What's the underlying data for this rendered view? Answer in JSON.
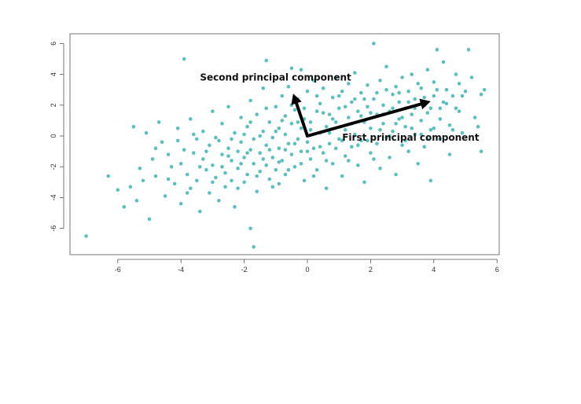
{
  "chart_data": {
    "type": "scatter",
    "title": "",
    "xlabel": "",
    "ylabel": "",
    "xlim": [
      -7.5,
      6.0
    ],
    "ylim": [
      -7.5,
      6.5
    ],
    "x_ticks": [
      -6,
      -4,
      -2,
      0,
      2,
      4,
      6
    ],
    "y_ticks": [
      -6,
      -4,
      -2,
      0,
      2,
      4,
      6
    ],
    "grid": false,
    "legend": "none",
    "point_color": "#5dbfbd",
    "arrow_color": "#000000",
    "series": [
      {
        "points": [
          [
            -7.0,
            -6.5
          ],
          [
            -6.3,
            -2.6
          ],
          [
            -6.0,
            -3.5
          ],
          [
            -5.8,
            -4.6
          ],
          [
            -5.6,
            -3.3
          ],
          [
            -5.5,
            0.6
          ],
          [
            -5.4,
            -4.2
          ],
          [
            -5.3,
            -2.1
          ],
          [
            -5.2,
            -2.9
          ],
          [
            -5.1,
            0.2
          ],
          [
            -5.0,
            -5.4
          ],
          [
            -4.9,
            -1.5
          ],
          [
            -4.8,
            -2.6
          ],
          [
            -4.7,
            0.9
          ],
          [
            -4.6,
            -0.4
          ],
          [
            -4.5,
            -3.9
          ],
          [
            -4.4,
            -1.2
          ],
          [
            -4.3,
            -2.0
          ],
          [
            -4.2,
            -3.1
          ],
          [
            -4.1,
            0.5
          ],
          [
            -4.0,
            -4.4
          ],
          [
            -4.0,
            -1.8
          ],
          [
            -3.9,
            -0.9
          ],
          [
            -3.9,
            5.0
          ],
          [
            -3.8,
            -2.5
          ],
          [
            -3.7,
            -3.4
          ],
          [
            -3.7,
            1.1
          ],
          [
            -3.6,
            -1.1
          ],
          [
            -3.5,
            -0.2
          ],
          [
            -3.5,
            -2.9
          ],
          [
            -3.4,
            -4.9
          ],
          [
            -3.3,
            -1.5
          ],
          [
            -3.3,
            0.3
          ],
          [
            -3.2,
            -2.2
          ],
          [
            -3.1,
            -3.7
          ],
          [
            -3.1,
            -0.6
          ],
          [
            -3.0,
            1.6
          ],
          [
            -3.0,
            -1.9
          ],
          [
            -2.9,
            -2.7
          ],
          [
            -2.8,
            -0.3
          ],
          [
            -2.8,
            -4.2
          ],
          [
            -2.7,
            -1.2
          ],
          [
            -2.7,
            0.8
          ],
          [
            -2.6,
            -2.4
          ],
          [
            -2.6,
            -3.3
          ],
          [
            -2.5,
            -0.8
          ],
          [
            -2.5,
            1.9
          ],
          [
            -2.4,
            -1.6
          ],
          [
            -2.4,
            -2.9
          ],
          [
            -2.3,
            0.2
          ],
          [
            -2.3,
            -4.6
          ],
          [
            -2.2,
            -1.0
          ],
          [
            -2.2,
            -2.1
          ],
          [
            -2.1,
            1.2
          ],
          [
            -2.1,
            -0.4
          ],
          [
            -2.0,
            -3.0
          ],
          [
            -2.0,
            -1.4
          ],
          [
            -1.9,
            0.6
          ],
          [
            -1.9,
            -2.5
          ],
          [
            -1.8,
            -0.9
          ],
          [
            -1.8,
            2.3
          ],
          [
            -1.8,
            -6.0
          ],
          [
            -1.7,
            -1.8
          ],
          [
            -1.7,
            -0.2
          ],
          [
            -1.7,
            -7.2
          ],
          [
            -1.6,
            -3.6
          ],
          [
            -1.6,
            1.4
          ],
          [
            -1.5,
            -1.1
          ],
          [
            -1.5,
            -2.3
          ],
          [
            -1.4,
            0.3
          ],
          [
            -1.4,
            3.1
          ],
          [
            -1.3,
            -0.6
          ],
          [
            -1.3,
            4.9
          ],
          [
            -1.3,
            -1.9
          ],
          [
            -1.2,
            -2.8
          ],
          [
            -1.2,
            0.9
          ],
          [
            -1.1,
            -0.1
          ],
          [
            -1.1,
            -1.4
          ],
          [
            -1.0,
            1.9
          ],
          [
            -1.0,
            -2.2
          ],
          [
            -0.9,
            0.5
          ],
          [
            -0.9,
            -3.1
          ],
          [
            -0.9,
            -0.8
          ],
          [
            -0.8,
            2.6
          ],
          [
            -0.8,
            -1.6
          ],
          [
            -0.7,
            0.1
          ],
          [
            -0.7,
            1.3
          ],
          [
            -0.7,
            -2.5
          ],
          [
            -0.6,
            -0.5
          ],
          [
            -0.6,
            3.2
          ],
          [
            -0.5,
            4.4
          ],
          [
            -0.5,
            -1.2
          ],
          [
            -0.5,
            0.8
          ],
          [
            -0.4,
            -2.0
          ],
          [
            -0.4,
            1.7
          ],
          [
            -0.3,
            -0.2
          ],
          [
            -0.3,
            2.4
          ],
          [
            -0.2,
            -1.0
          ],
          [
            -0.2,
            4.3
          ],
          [
            -0.2,
            0.5
          ],
          [
            -0.1,
            -2.9
          ],
          [
            -0.1,
            1.1
          ],
          [
            0.0,
            -0.4
          ],
          [
            0.0,
            2.9
          ],
          [
            0.1,
            -1.5
          ],
          [
            0.1,
            0.9
          ],
          [
            0.2,
            3.6
          ],
          [
            0.2,
            -0.8
          ],
          [
            0.3,
            1.6
          ],
          [
            0.3,
            -2.2
          ],
          [
            0.4,
            0.2
          ],
          [
            0.4,
            2.1
          ],
          [
            0.5,
            -1.1
          ],
          [
            0.5,
            3.1
          ],
          [
            0.6,
            0.6
          ],
          [
            0.6,
            -3.4
          ],
          [
            0.7,
            1.4
          ],
          [
            0.7,
            -0.5
          ],
          [
            0.8,
            2.5
          ],
          [
            0.8,
            -1.8
          ],
          [
            0.9,
            0.9
          ],
          [
            0.9,
            3.8
          ],
          [
            1.0,
            -0.2
          ],
          [
            1.0,
            1.8
          ],
          [
            1.1,
            -2.6
          ],
          [
            1.1,
            2.9
          ],
          [
            1.2,
            0.4
          ],
          [
            1.2,
            -1.3
          ],
          [
            1.3,
            1.2
          ],
          [
            1.3,
            3.4
          ],
          [
            1.4,
            -0.7
          ],
          [
            1.4,
            2.2
          ],
          [
            1.5,
            0.1
          ],
          [
            1.5,
            4.1
          ],
          [
            1.6,
            -1.9
          ],
          [
            1.6,
            1.6
          ],
          [
            1.7,
            2.8
          ],
          [
            1.7,
            -0.3
          ],
          [
            1.8,
            0.9
          ],
          [
            1.8,
            -3.0
          ],
          [
            1.9,
            1.9
          ],
          [
            1.9,
            3.3
          ],
          [
            2.0,
            -1.1
          ],
          [
            2.0,
            0.5
          ],
          [
            2.1,
            6.0
          ],
          [
            2.1,
            2.4
          ],
          [
            2.2,
            -0.5
          ],
          [
            2.2,
            1.4
          ],
          [
            2.3,
            3.6
          ],
          [
            2.3,
            -2.1
          ],
          [
            2.4,
            0.8
          ],
          [
            2.4,
            2.0
          ],
          [
            2.5,
            -0.1
          ],
          [
            2.5,
            4.5
          ],
          [
            2.6,
            1.6
          ],
          [
            2.6,
            -1.4
          ],
          [
            2.7,
            2.7
          ],
          [
            2.7,
            0.3
          ],
          [
            2.8,
            3.2
          ],
          [
            2.8,
            -2.5
          ],
          [
            2.9,
            1.1
          ],
          [
            2.9,
            2.2
          ],
          [
            3.0,
            -0.6
          ],
          [
            3.0,
            3.8
          ],
          [
            3.1,
            1.8
          ],
          [
            3.1,
            0.6
          ],
          [
            3.2,
            2.9
          ],
          [
            3.2,
            -1.0
          ],
          [
            3.3,
            1.4
          ],
          [
            3.3,
            4.0
          ],
          [
            3.4,
            0.1
          ],
          [
            3.4,
            2.4
          ],
          [
            3.5,
            -1.8
          ],
          [
            3.6,
            1.0
          ],
          [
            3.6,
            3.1
          ],
          [
            3.7,
            2.0
          ],
          [
            3.7,
            -0.7
          ],
          [
            3.8,
            4.3
          ],
          [
            3.8,
            1.5
          ],
          [
            3.9,
            0.4
          ],
          [
            3.9,
            -2.9
          ],
          [
            4.0,
            2.6
          ],
          [
            4.0,
            3.5
          ],
          [
            4.1,
            5.6
          ],
          [
            4.2,
            1.1
          ],
          [
            4.2,
            -0.2
          ],
          [
            4.3,
            2.2
          ],
          [
            4.3,
            4.8
          ],
          [
            4.4,
            3.0
          ],
          [
            4.5,
            0.7
          ],
          [
            4.5,
            -1.2
          ],
          [
            4.6,
            2.6
          ],
          [
            4.7,
            4.0
          ],
          [
            4.8,
            1.6
          ],
          [
            4.8,
            3.4
          ],
          [
            4.9,
            0.2
          ],
          [
            5.0,
            2.9
          ],
          [
            5.1,
            5.6
          ],
          [
            5.2,
            3.8
          ],
          [
            5.3,
            1.2
          ],
          [
            5.4,
            0.6
          ],
          [
            5.5,
            2.7
          ],
          [
            5.5,
            -1.0
          ],
          [
            5.6,
            3.0
          ],
          [
            -4.8,
            -0.8
          ],
          [
            -4.4,
            -2.8
          ],
          [
            -4.1,
            -0.3
          ],
          [
            -3.8,
            -3.7
          ],
          [
            -3.6,
            0.1
          ],
          [
            -3.4,
            -2.0
          ],
          [
            -3.2,
            -1.0
          ],
          [
            -3.0,
            -3.0
          ],
          [
            -2.9,
            -0.1
          ],
          [
            -2.7,
            -2.0
          ],
          [
            -2.5,
            -1.3
          ],
          [
            -2.4,
            -0.2
          ],
          [
            -2.2,
            -3.4
          ],
          [
            -2.1,
            -1.8
          ],
          [
            -2.0,
            0.1
          ],
          [
            -1.9,
            -1.1
          ],
          [
            -1.8,
            0.9
          ],
          [
            -1.6,
            -2.6
          ],
          [
            -1.5,
            0.0
          ],
          [
            -1.4,
            -1.5
          ],
          [
            -1.3,
            1.8
          ],
          [
            -1.2,
            -0.9
          ],
          [
            -1.1,
            -3.3
          ],
          [
            -1.0,
            0.3
          ],
          [
            -0.9,
            -1.7
          ],
          [
            -0.8,
            1.0
          ],
          [
            -0.7,
            -0.9
          ],
          [
            -0.6,
            -2.2
          ],
          [
            -0.5,
            2.0
          ],
          [
            -0.4,
            -0.5
          ],
          [
            -0.3,
            0.9
          ],
          [
            -0.2,
            -1.8
          ],
          [
            -0.1,
            1.8
          ],
          [
            0.0,
            -1.0
          ],
          [
            0.1,
            0.4
          ],
          [
            0.2,
            -2.6
          ],
          [
            0.3,
            2.6
          ],
          [
            0.4,
            -0.7
          ],
          [
            0.5,
            1.5
          ],
          [
            0.6,
            -1.6
          ],
          [
            0.7,
            0.2
          ],
          [
            0.8,
            1.1
          ],
          [
            0.9,
            -0.8
          ],
          [
            1.0,
            2.6
          ],
          [
            1.1,
            -0.3
          ],
          [
            1.2,
            1.9
          ],
          [
            1.3,
            -1.6
          ],
          [
            1.4,
            0.8
          ],
          [
            1.5,
            2.4
          ],
          [
            1.6,
            -0.6
          ],
          [
            1.7,
            1.3
          ],
          [
            1.8,
            2.4
          ],
          [
            1.9,
            -0.3
          ],
          [
            2.0,
            1.5
          ],
          [
            2.1,
            -1.5
          ],
          [
            2.2,
            2.8
          ],
          [
            2.3,
            0.4
          ],
          [
            2.4,
            1.4
          ],
          [
            2.5,
            3.0
          ],
          [
            2.6,
            0.0
          ],
          [
            2.7,
            1.8
          ],
          [
            2.8,
            0.8
          ],
          [
            2.9,
            2.8
          ],
          [
            3.0,
            1.2
          ],
          [
            3.1,
            -0.3
          ],
          [
            3.2,
            2.2
          ],
          [
            3.3,
            0.5
          ],
          [
            3.4,
            1.8
          ],
          [
            3.5,
            3.4
          ],
          [
            3.6,
            0.1
          ],
          [
            3.7,
            2.5
          ],
          [
            3.8,
            -0.2
          ],
          [
            3.9,
            1.8
          ],
          [
            4.0,
            0.5
          ],
          [
            4.1,
            3.0
          ],
          [
            4.2,
            1.8
          ],
          [
            4.4,
            2.1
          ],
          [
            4.6,
            0.4
          ],
          [
            4.7,
            1.8
          ],
          [
            4.9,
            2.6
          ]
        ]
      }
    ],
    "annotations": [
      {
        "text": "Second principal component",
        "anchor": [
          -3.4,
          3.6
        ]
      },
      {
        "text": "First principal component",
        "anchor": [
          1.1,
          -0.3
        ]
      }
    ],
    "arrows": [
      {
        "from": [
          0,
          0
        ],
        "to": [
          -0.45,
          2.75
        ]
      },
      {
        "from": [
          0,
          0
        ],
        "to": [
          3.9,
          2.25
        ]
      }
    ]
  }
}
